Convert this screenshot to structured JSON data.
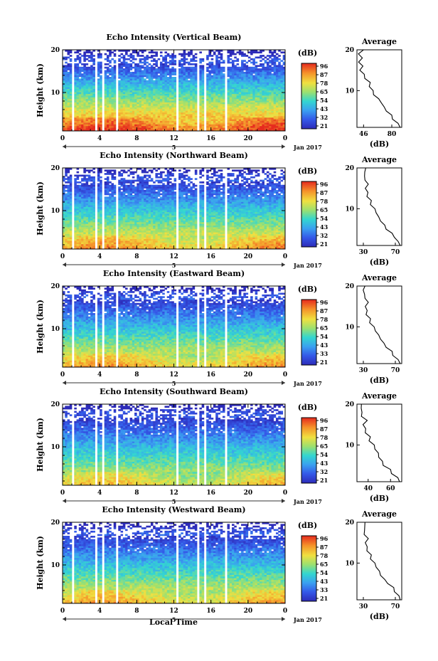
{
  "figure": {
    "xlabel_bottom": "Local Time",
    "date_label": "Jan 2017",
    "day_label": "5"
  },
  "colorbar_ticks": [
    "96",
    "87",
    "78",
    "65",
    "54",
    "43",
    "32",
    "21"
  ],
  "colorbar_ticks_variant": [
    "96",
    "87",
    "78",
    "65",
    "54",
    "43",
    "33",
    "21"
  ],
  "chart_data": [
    {
      "type": "heatmap",
      "title": "Echo Intensity (Vertical Beam)",
      "ylabel": "Height (km)",
      "colorbar_label": "(dB)",
      "colorbar_ticks": [
        "96",
        "87",
        "78",
        "65",
        "54",
        "43",
        "32",
        "21"
      ],
      "x_ticks": [
        "0",
        "4",
        "8",
        "12",
        "16",
        "20",
        "0"
      ],
      "y_ticks": [
        "20",
        "10"
      ],
      "xlim": [
        0,
        24
      ],
      "ylim": [
        1,
        20
      ],
      "gaps_hours": [
        [
          1.0,
          1.3
        ],
        [
          3.5,
          3.7
        ],
        [
          4.3,
          4.6
        ],
        [
          5.8,
          6.1
        ],
        [
          12.3,
          12.5
        ],
        [
          14.4,
          14.8
        ],
        [
          15.2,
          15.4
        ],
        [
          17.6,
          17.8
        ]
      ],
      "average": {
        "title": "Average",
        "xlabel": "(dB)",
        "x_ticks": [
          "46",
          "80"
        ],
        "y_ticks": [
          "20",
          "10"
        ],
        "xlim": [
          38,
          92
        ],
        "heights_km": [
          1,
          2,
          3,
          4,
          5,
          6,
          7,
          8,
          9,
          10,
          11,
          12,
          13,
          14,
          15,
          16,
          17,
          18,
          19,
          20
        ],
        "values_db": [
          90,
          86,
          82,
          78,
          75,
          70,
          68,
          63,
          58,
          56,
          54,
          52,
          49,
          46,
          42,
          44,
          40,
          43,
          41,
          44
        ]
      }
    },
    {
      "type": "heatmap",
      "title": "Echo Intensity (Northward Beam)",
      "ylabel": "Height (km)",
      "colorbar_label": "(dB)",
      "colorbar_ticks": [
        "96",
        "87",
        "78",
        "65",
        "54",
        "43",
        "32",
        "21"
      ],
      "x_ticks": [
        "0",
        "4",
        "8",
        "12",
        "16",
        "20",
        "0"
      ],
      "y_ticks": [
        "20",
        "10"
      ],
      "xlim": [
        0,
        24
      ],
      "ylim": [
        1,
        20
      ],
      "gaps_hours": [
        [
          1.0,
          1.3
        ],
        [
          3.5,
          3.7
        ],
        [
          4.3,
          4.6
        ],
        [
          5.8,
          6.1
        ],
        [
          12.3,
          12.5
        ],
        [
          14.4,
          14.8
        ],
        [
          15.2,
          15.4
        ],
        [
          17.6,
          17.8
        ]
      ],
      "average": {
        "title": "Average",
        "xlabel": "(dB)",
        "x_ticks": [
          "30",
          "70"
        ],
        "y_ticks": [
          "20",
          "10"
        ],
        "xlim": [
          22,
          78
        ],
        "heights_km": [
          1,
          2,
          3,
          4,
          5,
          6,
          7,
          8,
          9,
          10,
          11,
          12,
          13,
          14,
          15,
          16,
          17,
          18,
          19,
          20
        ],
        "values_db": [
          76,
          72,
          70,
          64,
          60,
          56,
          52,
          48,
          46,
          43,
          40,
          38,
          36,
          35,
          33,
          35,
          32,
          30,
          33,
          31
        ]
      }
    },
    {
      "type": "heatmap",
      "title": "Echo Intensity (Eastward Beam)",
      "ylabel": "Height (km)",
      "colorbar_label": "(dB)",
      "colorbar_ticks": [
        "96",
        "87",
        "78",
        "65",
        "54",
        "43",
        "33",
        "21"
      ],
      "x_ticks": [
        "0",
        "4",
        "8",
        "12",
        "16",
        "20",
        "0"
      ],
      "y_ticks": [
        "20",
        "10"
      ],
      "xlim": [
        0,
        24
      ],
      "ylim": [
        1,
        20
      ],
      "gaps_hours": [
        [
          1.0,
          1.3
        ],
        [
          3.5,
          3.7
        ],
        [
          4.3,
          4.6
        ],
        [
          5.8,
          6.1
        ],
        [
          12.3,
          12.5
        ],
        [
          14.4,
          14.8
        ],
        [
          15.2,
          15.4
        ],
        [
          17.6,
          17.8
        ]
      ],
      "average": {
        "title": "Average",
        "xlabel": "(dB)",
        "x_ticks": [
          "30",
          "70"
        ],
        "y_ticks": [
          "20",
          "10"
        ],
        "xlim": [
          22,
          78
        ],
        "heights_km": [
          1,
          2,
          3,
          4,
          5,
          6,
          7,
          8,
          9,
          10,
          11,
          12,
          13,
          14,
          15,
          16,
          17,
          18,
          19,
          20
        ],
        "values_db": [
          76,
          72,
          68,
          64,
          60,
          55,
          52,
          48,
          45,
          42,
          39,
          37,
          35,
          34,
          33,
          35,
          32,
          30,
          31,
          30
        ]
      }
    },
    {
      "type": "heatmap",
      "title": "Echo Intensity (Southward Beam)",
      "ylabel": "Height (km)",
      "colorbar_label": "(dB)",
      "colorbar_ticks": [
        "96",
        "87",
        "78",
        "65",
        "54",
        "43",
        "32",
        "21"
      ],
      "x_ticks": [
        "0",
        "4",
        "8",
        "12",
        "16",
        "20",
        "0"
      ],
      "y_ticks": [
        "20",
        "10"
      ],
      "xlim": [
        0,
        24
      ],
      "ylim": [
        1,
        20
      ],
      "gaps_hours": [
        [
          1.0,
          1.3
        ],
        [
          3.5,
          3.7
        ],
        [
          4.3,
          4.6
        ],
        [
          5.8,
          6.1
        ],
        [
          12.3,
          12.5
        ],
        [
          14.4,
          14.8
        ],
        [
          15.2,
          15.4
        ],
        [
          17.6,
          17.8
        ]
      ],
      "average": {
        "title": "Average",
        "xlabel": "(dB)",
        "x_ticks": [
          "40",
          "60"
        ],
        "y_ticks": [
          "20",
          "10"
        ],
        "xlim": [
          30,
          70
        ],
        "heights_km": [
          1,
          2,
          3,
          4,
          5,
          6,
          7,
          8,
          9,
          10,
          11,
          12,
          13,
          14,
          15,
          16,
          17,
          18,
          19,
          20
        ],
        "values_db": [
          68,
          65,
          62,
          58,
          55,
          52,
          50,
          48,
          46,
          44,
          42,
          40,
          39,
          37,
          36,
          38,
          34,
          33,
          35,
          32
        ]
      }
    },
    {
      "type": "heatmap",
      "title": "Echo Intensity (Westward Beam)",
      "ylabel": "Height (km)",
      "colorbar_label": "(dB)",
      "colorbar_ticks": [
        "96",
        "87",
        "78",
        "65",
        "54",
        "43",
        "33",
        "21"
      ],
      "x_ticks": [
        "0",
        "4",
        "8",
        "12",
        "16",
        "20",
        "0"
      ],
      "y_ticks": [
        "20",
        "10"
      ],
      "xlim": [
        0,
        24
      ],
      "ylim": [
        1,
        20
      ],
      "gaps_hours": [
        [
          1.0,
          1.3
        ],
        [
          3.5,
          3.7
        ],
        [
          4.3,
          4.6
        ],
        [
          5.8,
          6.1
        ],
        [
          12.3,
          12.5
        ],
        [
          14.4,
          14.8
        ],
        [
          15.2,
          15.4
        ],
        [
          17.6,
          17.8
        ]
      ],
      "average": {
        "title": "Average",
        "xlabel": "(dB)",
        "x_ticks": [
          "30",
          "70"
        ],
        "y_ticks": [
          "20",
          "10"
        ],
        "xlim": [
          22,
          78
        ],
        "heights_km": [
          1,
          2,
          3,
          4,
          5,
          6,
          7,
          8,
          9,
          10,
          11,
          12,
          13,
          14,
          15,
          16,
          17,
          18,
          19,
          20
        ],
        "values_db": [
          76,
          73,
          70,
          66,
          62,
          56,
          52,
          49,
          46,
          43,
          40,
          38,
          36,
          34,
          33,
          35,
          31,
          30,
          33,
          30
        ]
      }
    }
  ]
}
